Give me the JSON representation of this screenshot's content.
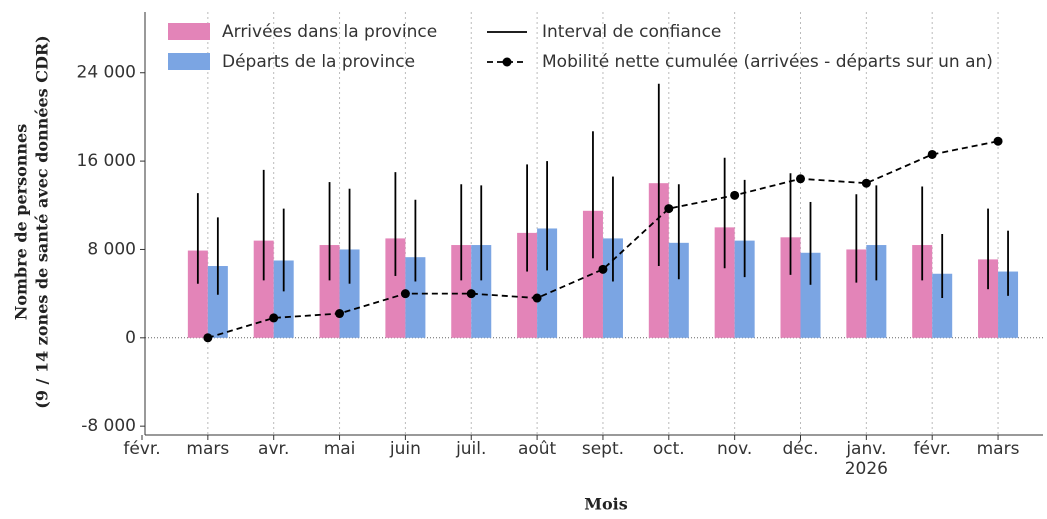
{
  "chart_data": {
    "type": "bar_line",
    "categories": [
      "févr.",
      "mars",
      "avr.",
      "mai",
      "juin",
      "juil.",
      "août",
      "sept.",
      "oct.",
      "nov.",
      "déc.",
      "janv.\n2026",
      "févr.",
      "mars"
    ],
    "series": [
      {
        "name": "Arrivées dans la province",
        "color": "#e384b8",
        "values": [
          null,
          7900,
          8800,
          8400,
          9000,
          8400,
          9500,
          11500,
          14000,
          10000,
          9100,
          8000,
          8400,
          7100
        ],
        "ci": [
          null,
          [
            4900,
            13100
          ],
          [
            5200,
            15200
          ],
          [
            5200,
            14100
          ],
          [
            5600,
            15000
          ],
          [
            5200,
            13900
          ],
          [
            6000,
            15700
          ],
          [
            7200,
            18700
          ],
          [
            6500,
            23000
          ],
          [
            6300,
            16300
          ],
          [
            5700,
            14900
          ],
          [
            5000,
            13000
          ],
          [
            5200,
            13700
          ],
          [
            4400,
            11700
          ]
        ]
      },
      {
        "name": "Départs de la province",
        "color": "#7ba5e3",
        "values": [
          null,
          6500,
          7000,
          8000,
          7300,
          8400,
          9900,
          9000,
          8600,
          8800,
          7700,
          8400,
          5800,
          6000
        ],
        "ci": [
          null,
          [
            3900,
            10900
          ],
          [
            4200,
            11700
          ],
          [
            4900,
            13500
          ],
          [
            5100,
            12500
          ],
          [
            5200,
            13800
          ],
          [
            6100,
            16000
          ],
          [
            5100,
            14600
          ],
          [
            5300,
            13900
          ],
          [
            5500,
            14300
          ],
          [
            4800,
            12300
          ],
          [
            5200,
            13800
          ],
          [
            3600,
            9400
          ],
          [
            3800,
            9700
          ]
        ]
      },
      {
        "name": "Mobilité nette cumulée (arrivées - départs sur un an)",
        "color": "#000000",
        "type": "line",
        "values": [
          null,
          0,
          1800,
          2200,
          4000,
          4000,
          3600,
          6200,
          11700,
          12900,
          14400,
          14000,
          16600,
          17800
        ]
      }
    ],
    "ci_label": "Interval de confiance",
    "x_label": "Mois",
    "y_label": [
      "Nombre de personnes",
      "(9 / 14 zones de santé avec données CDR)"
    ],
    "ylim": [
      -8800,
      29500
    ],
    "yticks": [
      {
        "value": -8000,
        "label": "-8 000"
      },
      0,
      {
        "value": 8000,
        "label": "8 000"
      },
      {
        "value": 16000,
        "label": "16 000"
      },
      {
        "value": 24000,
        "label": "24 000"
      }
    ],
    "grid": true
  }
}
